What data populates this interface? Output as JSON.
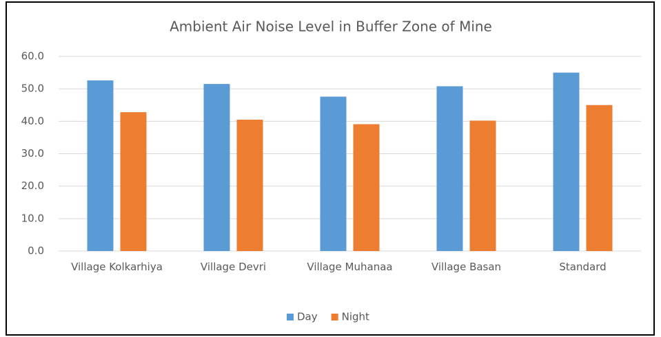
{
  "chart_data": {
    "type": "bar",
    "title": "Ambient Air Noise Level in Buffer Zone of Mine",
    "categories": [
      "Village Kolkarhiya",
      "Village Devri",
      "Village Muhanaa",
      "Village Basan",
      "Standard"
    ],
    "series": [
      {
        "name": "Day",
        "color": "#5b9bd5",
        "values": [
          52.6,
          51.5,
          47.6,
          50.8,
          55
        ]
      },
      {
        "name": "Night",
        "color": "#ed7d31",
        "values": [
          42.8,
          40.5,
          39.1,
          40.2,
          45
        ]
      }
    ],
    "ylim": [
      0,
      60
    ],
    "yticks": [
      {
        "value": 0,
        "label": "0.0"
      },
      {
        "value": 10,
        "label": "10.0"
      },
      {
        "value": 20,
        "label": "20.0"
      },
      {
        "value": 30,
        "label": "30.0"
      },
      {
        "value": 40,
        "label": "40.0"
      },
      {
        "value": 50,
        "label": "50.0"
      },
      {
        "value": 60,
        "label": "60.0"
      }
    ],
    "grid": true,
    "legend": "bottom"
  }
}
